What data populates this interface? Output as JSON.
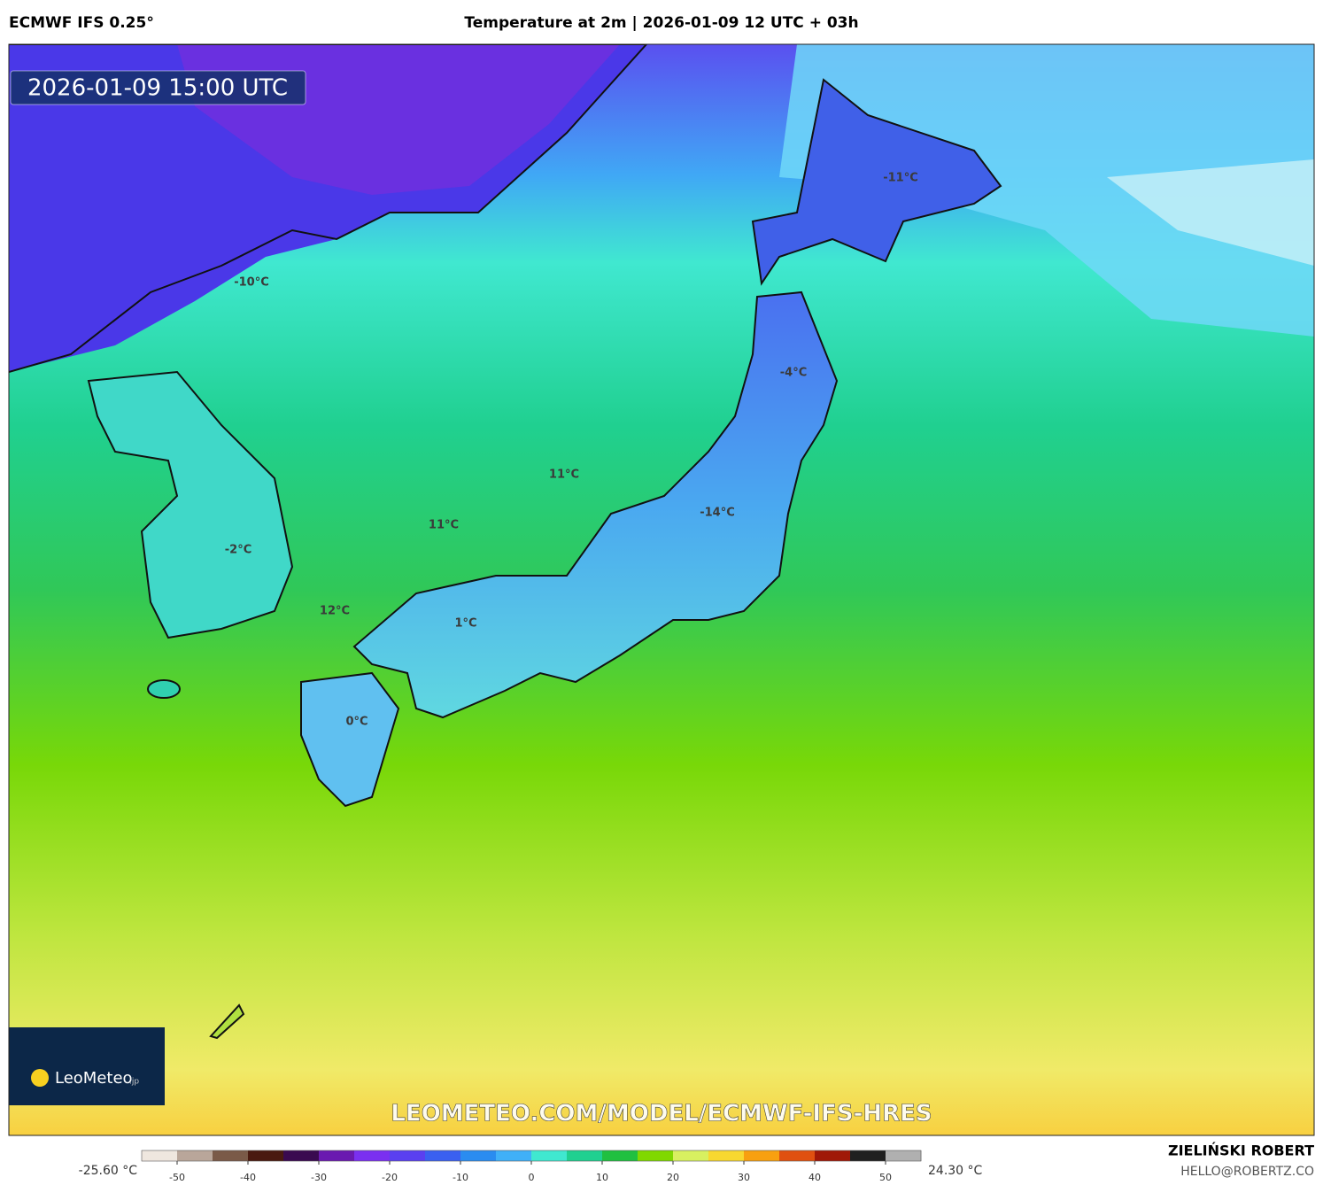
{
  "header": {
    "model": "ECMWF IFS 0.25°",
    "title": "Temperature at 2m | 2026-01-09 12 UTC + 03h"
  },
  "map": {
    "valid_time": "2026-01-09 15:00 UTC",
    "labels": [
      "-11°C",
      "-10°C",
      "-4°C",
      "11°C",
      "-14°C",
      "11°C",
      "-2°C",
      "12°C",
      "1°C",
      "0°C"
    ],
    "watermark": "LEOMETEO.COM/MODEL/ECMWF-IFS-HRES",
    "logo": {
      "name": "LeoMeteo",
      "suffix": ".jp"
    }
  },
  "colorbar": {
    "min_label": "-25.60 °C",
    "max_label": "24.30 °C",
    "lim": [
      -55,
      55
    ],
    "ticks": [
      -50,
      -40,
      -30,
      -20,
      -10,
      0,
      10,
      20,
      30,
      40,
      50
    ],
    "colors": [
      "#efe7df",
      "#b9a69a",
      "#7a5a48",
      "#4a1a10",
      "#3a0a50",
      "#6a1ab0",
      "#7a30f0",
      "#5a40f0",
      "#3a60f0",
      "#2a8cf0",
      "#40b0f8",
      "#40e8d0",
      "#20d090",
      "#20c040",
      "#80d800",
      "#d8f060",
      "#f8d830",
      "#f8a010",
      "#e05010",
      "#a01808",
      "#202020",
      "#b0b0b0"
    ]
  },
  "footer": {
    "author": "ZIELIŃSKI ROBERT",
    "email": "HELLO@ROBERTZ.CO"
  }
}
